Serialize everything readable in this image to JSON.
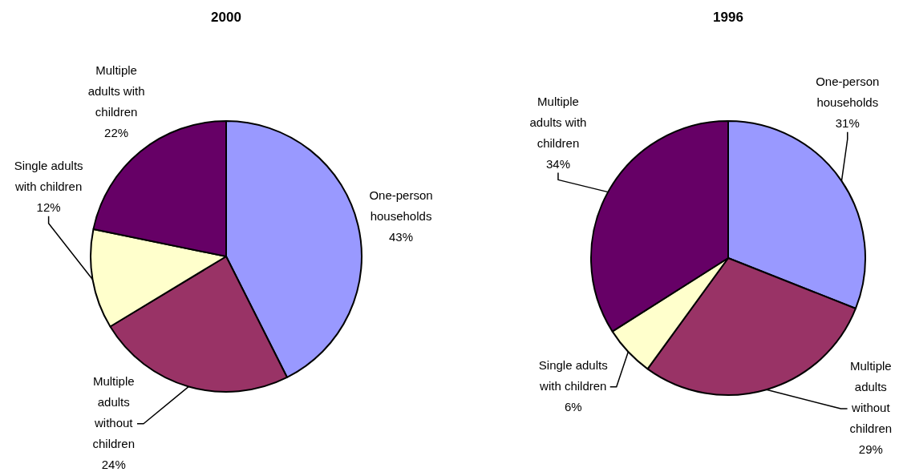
{
  "chart_data": [
    {
      "type": "pie",
      "title": "2000",
      "categories": [
        "One-person households",
        "Multiple adults without children",
        "Single adults with children",
        "Multiple adults with children"
      ],
      "values": [
        43,
        24,
        12,
        22
      ],
      "colors": [
        "#9999ff",
        "#993366",
        "#ffffcc",
        "#660066"
      ],
      "value_labels": [
        "43%",
        "24%",
        "12%",
        "22%"
      ]
    },
    {
      "type": "pie",
      "title": "1996",
      "categories": [
        "One-person households",
        "Multiple adults without children",
        "Single adults with children",
        "Multiple adults with children"
      ],
      "values": [
        31,
        29,
        6,
        34
      ],
      "colors": [
        "#9999ff",
        "#993366",
        "#ffffcc",
        "#660066"
      ],
      "value_labels": [
        "31%",
        "29%",
        "6%",
        "34%"
      ]
    }
  ]
}
